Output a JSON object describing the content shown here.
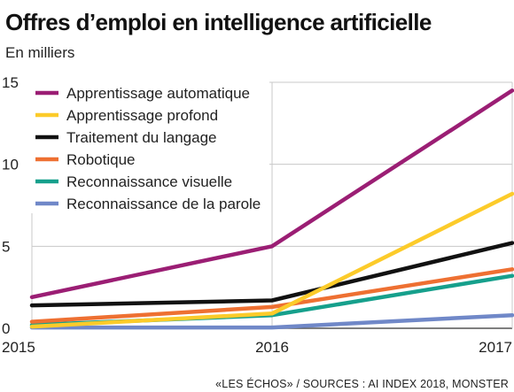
{
  "title": "Offres d’emploi en intelligence artificielle",
  "subtitle": "En milliers",
  "source": "«LES ÉCHOS» / SOURCES : AI INDEX 2018, MONSTER",
  "chart_data": {
    "type": "line",
    "title": "Offres d’emploi en intelligence artificielle",
    "ylabel": "En milliers",
    "xlabel": "",
    "x": [
      2015,
      2016,
      2017
    ],
    "x_labels": [
      "2015",
      "2016",
      "2017"
    ],
    "ylim": [
      0,
      15
    ],
    "yticks": [
      0,
      5,
      10,
      15
    ],
    "grid": true,
    "legend_position": "top-left",
    "series": [
      {
        "name": "Apprentissage automatique",
        "color": "#9b1e74",
        "values": [
          1.9,
          5.0,
          14.5
        ]
      },
      {
        "name": "Apprentissage profond",
        "color": "#fccb2a",
        "values": [
          0.1,
          0.9,
          8.2
        ]
      },
      {
        "name": "Traitement du langage",
        "color": "#111111",
        "values": [
          1.4,
          1.7,
          5.2
        ]
      },
      {
        "name": "Robotique",
        "color": "#ee7032",
        "values": [
          0.4,
          1.3,
          3.6
        ]
      },
      {
        "name": "Reconnaissance visuelle",
        "color": "#16a08c",
        "values": [
          0.2,
          0.8,
          3.2
        ]
      },
      {
        "name": "Reconnaissance de la parole",
        "color": "#7088c8",
        "values": [
          0.05,
          0.05,
          0.8
        ]
      }
    ]
  }
}
